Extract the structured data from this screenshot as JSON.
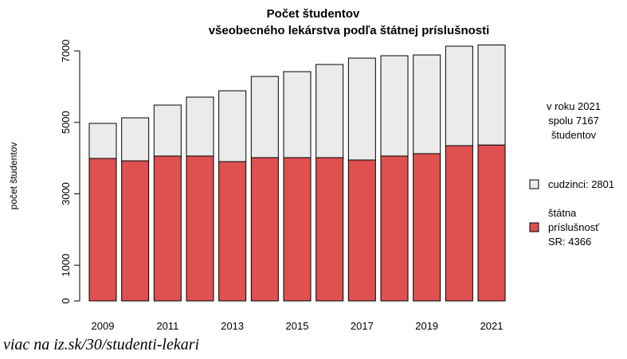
{
  "chart_data": {
    "type": "stacked-bar",
    "title": "Počet  študentov",
    "subtitle": "všeobecného lekárstva podľa štátnej príslušnosti",
    "y_label": "počet študentov",
    "annotation": [
      "v roku 2021",
      "spolu 7167",
      "študentov"
    ],
    "footer": "viac na iz.sk/30/studenti-lekari",
    "categories": [
      "2009",
      null,
      "2011",
      null,
      "2013",
      null,
      "2015",
      null,
      "2017",
      null,
      "2019",
      null,
      "2021"
    ],
    "series": [
      {
        "name": [
          "štátna",
          "príslušnosť",
          "SR: 4366"
        ],
        "color": "#df5050",
        "values": [
          3990,
          3923,
          4057,
          4057,
          3901,
          4012,
          4012,
          4012,
          3946,
          4057,
          4124,
          4347,
          4366
        ]
      },
      {
        "name": [
          "cudzinci: 2801"
        ],
        "color": "#ebebeb",
        "values": [
          981,
          1204,
          1427,
          1650,
          1984,
          2274,
          2408,
          2609,
          2853,
          2809,
          2764,
          2786,
          2801
        ]
      }
    ],
    "ylim": [
      0,
      7000
    ],
    "yticks": [
      0,
      1000,
      3000,
      5000,
      7000
    ]
  }
}
